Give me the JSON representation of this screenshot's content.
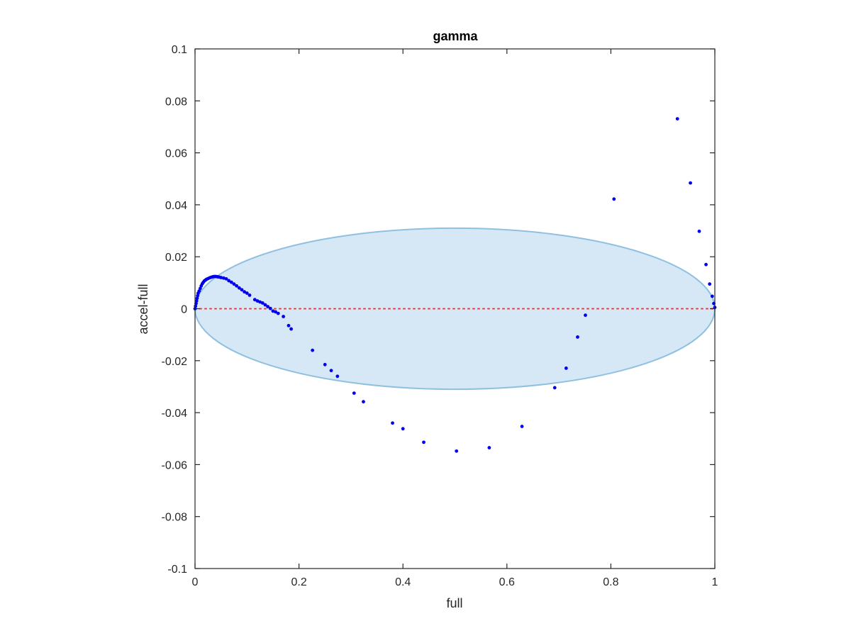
{
  "chart_data": {
    "type": "scatter",
    "title": "gamma",
    "xlabel": "full",
    "ylabel": "accel-full",
    "xlim": [
      0,
      1
    ],
    "ylim": [
      -0.1,
      0.1
    ],
    "x_ticks": [
      0,
      0.2,
      0.4,
      0.6,
      0.8,
      1
    ],
    "x_tick_labels": [
      "0",
      "0.2",
      "0.4",
      "0.6",
      "0.8",
      "1"
    ],
    "y_ticks": [
      -0.1,
      -0.08,
      -0.06,
      -0.04,
      -0.02,
      0,
      0.02,
      0.04,
      0.06,
      0.08,
      0.1
    ],
    "y_tick_labels": [
      "-0.1",
      "-0.08",
      "-0.06",
      "-0.04",
      "-0.02",
      "0",
      "0.02",
      "0.04",
      "0.06",
      "0.08",
      "0.1"
    ],
    "grid": false,
    "legend": "none",
    "colors": {
      "points": "#0000ee",
      "ellipse_fill": "#d6e8f5",
      "ellipse_stroke": "#8fc0e0",
      "zero_line": "#ff3333",
      "axes": "#262626"
    },
    "reference_line": {
      "y": 0,
      "style": "dotted"
    },
    "ellipse": {
      "cx": 0.5,
      "cy": 0,
      "rx": 0.5,
      "ry": 0.031
    },
    "series": [
      {
        "x": [
          0.0,
          0.001,
          0.002,
          0.003,
          0.004,
          0.005,
          0.006,
          0.008,
          0.01,
          0.012,
          0.014,
          0.016,
          0.018,
          0.02,
          0.022,
          0.025,
          0.028,
          0.031,
          0.034,
          0.037,
          0.04,
          0.043,
          0.046,
          0.05,
          0.055,
          0.06,
          0.065,
          0.07,
          0.075,
          0.08,
          0.085,
          0.09,
          0.095,
          0.1,
          0.105,
          0.115,
          0.12,
          0.125,
          0.13,
          0.135,
          0.14,
          0.145,
          0.15,
          0.155,
          0.16,
          0.17,
          0.18,
          0.185,
          0.226,
          0.25,
          0.262,
          0.274,
          0.306,
          0.324,
          0.38,
          0.4,
          0.44,
          0.503,
          0.566,
          0.629,
          0.692,
          0.714,
          0.736,
          0.751,
          0.806,
          0.928,
          0.953,
          0.97,
          0.983,
          0.99,
          0.995,
          0.998,
          1.0
        ],
        "y": [
          0.0,
          0.001,
          0.002,
          0.003,
          0.004,
          0.005,
          0.006,
          0.0068,
          0.0078,
          0.0088,
          0.0096,
          0.0102,
          0.0107,
          0.011,
          0.0113,
          0.0116,
          0.0119,
          0.0121,
          0.0123,
          0.0124,
          0.0124,
          0.0123,
          0.0122,
          0.012,
          0.0118,
          0.0115,
          0.0108,
          0.0102,
          0.0095,
          0.0088,
          0.008,
          0.0073,
          0.0065,
          0.006,
          0.0052,
          0.0035,
          0.003,
          0.0026,
          0.0022,
          0.0015,
          0.0008,
          0.0001,
          -0.0009,
          -0.0012,
          -0.0018,
          -0.003,
          -0.0065,
          -0.0078,
          -0.016,
          -0.0215,
          -0.0238,
          -0.026,
          -0.0325,
          -0.0358,
          -0.044,
          -0.0462,
          -0.0514,
          -0.0548,
          -0.0535,
          -0.0453,
          -0.0304,
          -0.0229,
          -0.0109,
          -0.0025,
          0.0422,
          0.0731,
          0.0484,
          0.0298,
          0.017,
          0.0095,
          0.0048,
          0.002,
          0.0005
        ]
      }
    ]
  }
}
